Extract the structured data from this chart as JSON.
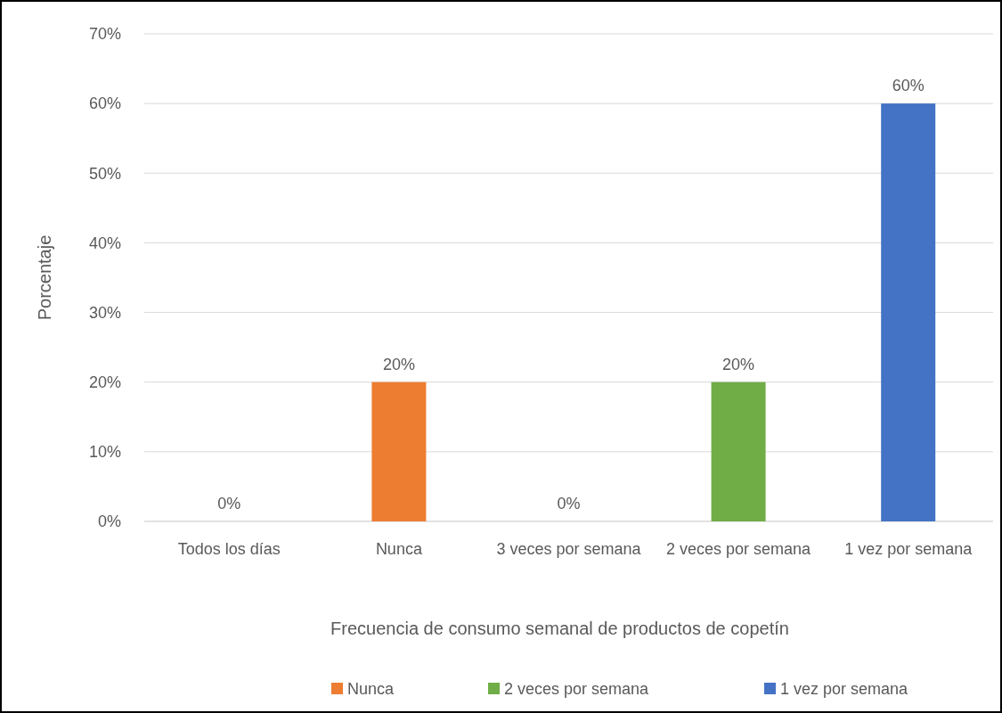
{
  "chart_data": {
    "type": "bar",
    "xlabel": "Frecuencia de consumo semanal de productos de copetín",
    "ylabel": "Porcentaje",
    "categories": [
      "Todos los días",
      "Nunca",
      "3 veces por semana",
      "2 veces por semana",
      "1 vez por semana"
    ],
    "series": [
      {
        "color": "#4472c4",
        "values": [
          0,
          null,
          null,
          null,
          null
        ],
        "value_labels": [
          "0%",
          null,
          null,
          null,
          null
        ]
      },
      {
        "name": "Nunca",
        "color": "#ed7d31",
        "values": [
          null,
          20,
          null,
          null,
          null
        ],
        "value_labels": [
          null,
          "20%",
          null,
          null,
          null
        ]
      },
      {
        "color": "#a5a5a5",
        "values": [
          null,
          null,
          0,
          null,
          null
        ],
        "value_labels": [
          null,
          null,
          "0%",
          null,
          null
        ]
      },
      {
        "name": "2 veces por semana",
        "color": "#70ad47",
        "values": [
          null,
          null,
          null,
          20,
          null
        ],
        "value_labels": [
          null,
          null,
          null,
          "20%",
          null
        ]
      },
      {
        "name": "1 vez por semana",
        "color": "#4472c4",
        "values": [
          null,
          null,
          null,
          null,
          60
        ],
        "value_labels": [
          null,
          null,
          null,
          null,
          "60%"
        ]
      }
    ],
    "ylim": [
      0,
      70
    ],
    "yticks": [
      {
        "value": 0,
        "label": "0%"
      },
      {
        "value": 10,
        "label": "10%"
      },
      {
        "value": 20,
        "label": "20%"
      },
      {
        "value": 30,
        "label": "30%"
      },
      {
        "value": 40,
        "label": "40%"
      },
      {
        "value": 50,
        "label": "50%"
      },
      {
        "value": 60,
        "label": "60%"
      },
      {
        "value": 70,
        "label": "70%"
      }
    ],
    "grid": "y",
    "legend": "bottom"
  }
}
